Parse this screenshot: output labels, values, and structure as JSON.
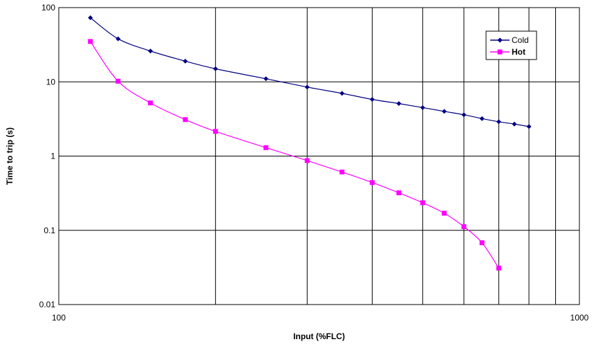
{
  "chart_data": {
    "type": "line",
    "xlabel": "Input (%FLC)",
    "ylabel": "Time to trip (s)",
    "x_scale": "log",
    "y_scale": "log",
    "xlim": [
      100,
      1000
    ],
    "ylim": [
      0.01,
      100
    ],
    "x_tick_labels": [
      "100",
      "1000"
    ],
    "y_tick_labels": [
      "0.01",
      "0.1",
      "1",
      "10",
      "100"
    ],
    "grid": true,
    "legend_position": "top-right",
    "series": [
      {
        "name": "Cold",
        "color": "#000080",
        "marker": "diamond",
        "x": [
          115,
          130,
          150,
          175,
          200,
          250,
          300,
          350,
          400,
          450,
          500,
          550,
          600,
          650,
          700,
          750,
          800
        ],
        "y": [
          73,
          38,
          26,
          19,
          15,
          11,
          8.5,
          7,
          5.8,
          5.1,
          4.5,
          4.0,
          3.6,
          3.2,
          2.9,
          2.7,
          2.5
        ]
      },
      {
        "name": "Hot",
        "color": "#ff00ff",
        "marker": "square",
        "x": [
          115,
          130,
          150,
          175,
          200,
          250,
          300,
          350,
          400,
          450,
          500,
          550,
          600,
          650,
          700
        ],
        "y": [
          35,
          10.2,
          5.2,
          3.1,
          2.15,
          1.3,
          0.87,
          0.61,
          0.44,
          0.32,
          0.235,
          0.17,
          0.112,
          0.068,
          0.031
        ]
      }
    ]
  }
}
